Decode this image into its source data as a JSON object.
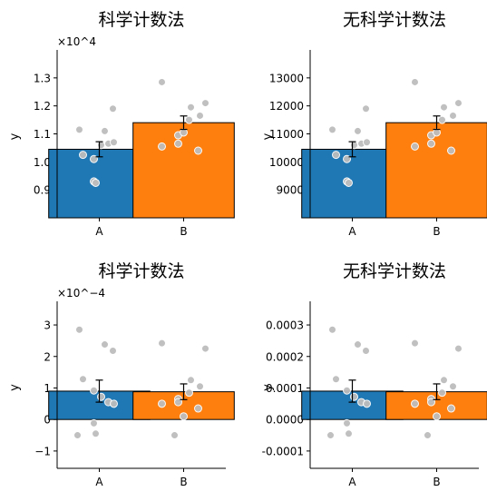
{
  "chart_data": [
    {
      "type": "bar",
      "title": "科学计数法",
      "xlabel": "",
      "ylabel": "y",
      "offset_label": "×10^4",
      "categories": [
        "A",
        "B"
      ],
      "values": [
        10450,
        11400
      ],
      "errors": [
        270,
        240
      ],
      "bar_colors": [
        "#1f77b4",
        "#ff7f0e"
      ],
      "ylim": [
        8000,
        14000
      ],
      "yticks": [
        9000,
        10000,
        11000,
        12000,
        13000
      ],
      "ytick_labels": [
        "0.9",
        "1.0",
        "1.1",
        "1.2",
        "1.3"
      ],
      "points": {
        "A": [
          11150,
          11100,
          11900,
          10250,
          10100,
          10600,
          10650,
          10700,
          9300,
          9250
        ],
        "B": [
          12850,
          12100,
          11950,
          11650,
          11500,
          10950,
          10650,
          10550,
          10400,
          11050
        ]
      }
    },
    {
      "type": "bar",
      "title": "无科学计数法",
      "xlabel": "",
      "ylabel": "y",
      "categories": [
        "A",
        "B"
      ],
      "values": [
        10450,
        11400
      ],
      "errors": [
        270,
        240
      ],
      "bar_colors": [
        "#1f77b4",
        "#ff7f0e"
      ],
      "ylim": [
        8000,
        14000
      ],
      "yticks": [
        9000,
        10000,
        11000,
        12000,
        13000
      ],
      "ytick_labels": [
        "9000",
        "10000",
        "11000",
        "12000",
        "13000"
      ],
      "points": {
        "A": [
          11150,
          11100,
          11900,
          10250,
          10100,
          10600,
          10650,
          10700,
          9300,
          9250
        ],
        "B": [
          12850,
          12100,
          11950,
          11650,
          11500,
          10950,
          10650,
          10550,
          10400,
          11050
        ]
      }
    },
    {
      "type": "bar",
      "title": "科学计数法",
      "xlabel": "",
      "ylabel": "y",
      "offset_label": "×10^−4",
      "categories": [
        "A",
        "B"
      ],
      "values": [
        9e-05,
        8.8e-05
      ],
      "errors": [
        3.5e-05,
        2.5e-05
      ],
      "bar_colors": [
        "#1f77b4",
        "#ff7f0e"
      ],
      "ylim": [
        -0.000155,
        0.000375
      ],
      "yticks": [
        -0.0001,
        0,
        0.0001,
        0.0002,
        0.0003
      ],
      "ytick_labels": [
        "−1",
        "0",
        "1",
        "2",
        "3"
      ],
      "points": {
        "A": [
          0.000285,
          0.000238,
          0.000218,
          0.000128,
          9.2e-05,
          7.2e-05,
          5.5e-05,
          5e-05,
          -1.2e-05,
          -4.5e-05,
          -5e-05
        ],
        "B": [
          0.000242,
          0.000225,
          0.000125,
          0.000105,
          8.5e-05,
          6.5e-05,
          5.5e-05,
          5e-05,
          3.5e-05,
          1e-05,
          -5e-05
        ]
      }
    },
    {
      "type": "bar",
      "title": "无科学计数法",
      "xlabel": "",
      "ylabel": "y",
      "categories": [
        "A",
        "B"
      ],
      "values": [
        9e-05,
        8.8e-05
      ],
      "errors": [
        3.5e-05,
        2.5e-05
      ],
      "bar_colors": [
        "#1f77b4",
        "#ff7f0e"
      ],
      "ylim": [
        -0.000155,
        0.000375
      ],
      "yticks": [
        -0.0001,
        0,
        0.0001,
        0.0002,
        0.0003
      ],
      "ytick_labels": [
        "-0.0001",
        "0.0000",
        "0.0001",
        "0.0002",
        "0.0003"
      ],
      "points": {
        "A": [
          0.000285,
          0.000238,
          0.000218,
          0.000128,
          9.2e-05,
          7.2e-05,
          5.5e-05,
          5e-05,
          -1.2e-05,
          -4.5e-05,
          -5e-05
        ],
        "B": [
          0.000242,
          0.000225,
          0.000125,
          0.000105,
          8.5e-05,
          6.5e-05,
          5.5e-05,
          5e-05,
          3.5e-05,
          1e-05,
          -5e-05
        ]
      }
    }
  ]
}
